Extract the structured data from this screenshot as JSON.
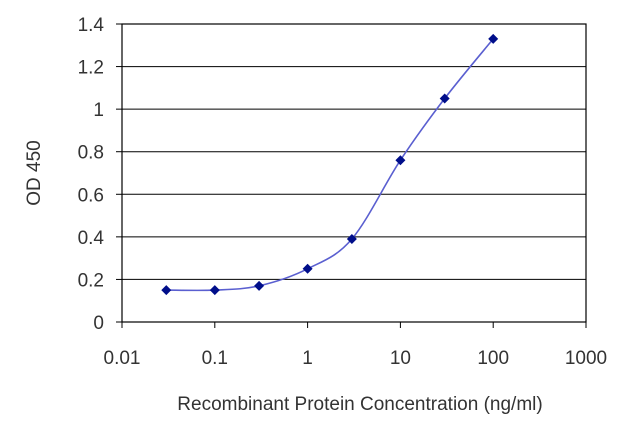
{
  "chart_data": {
    "type": "line",
    "xscale": "log",
    "xlabel": "Recombinant Protein Concentration (ng/ml)",
    "ylabel": "OD 450",
    "xlim": [
      0.01,
      1000
    ],
    "ylim": [
      0,
      1.4
    ],
    "x_ticks": [
      0.01,
      0.1,
      1,
      10,
      100,
      1000
    ],
    "x_tick_labels": [
      "0.01",
      "0.1",
      "1",
      "10",
      "100",
      "1000"
    ],
    "y_ticks": [
      0,
      0.2,
      0.4,
      0.6,
      0.8,
      1,
      1.2,
      1.4
    ],
    "y_tick_labels": [
      "0",
      "0.2",
      "0.4",
      "0.6",
      "0.8",
      "1",
      "1.2",
      "1.4"
    ],
    "grid": "horizontal",
    "legend": "none",
    "series": [
      {
        "x": [
          0.03,
          0.1,
          0.3,
          1,
          3,
          10,
          30,
          100
        ],
        "y": [
          0.15,
          0.15,
          0.17,
          0.25,
          0.39,
          0.76,
          1.05,
          1.33
        ]
      }
    ],
    "colors": {
      "line": "#5a5fd0",
      "marker": "#000e8a",
      "grid": "#000000"
    }
  }
}
